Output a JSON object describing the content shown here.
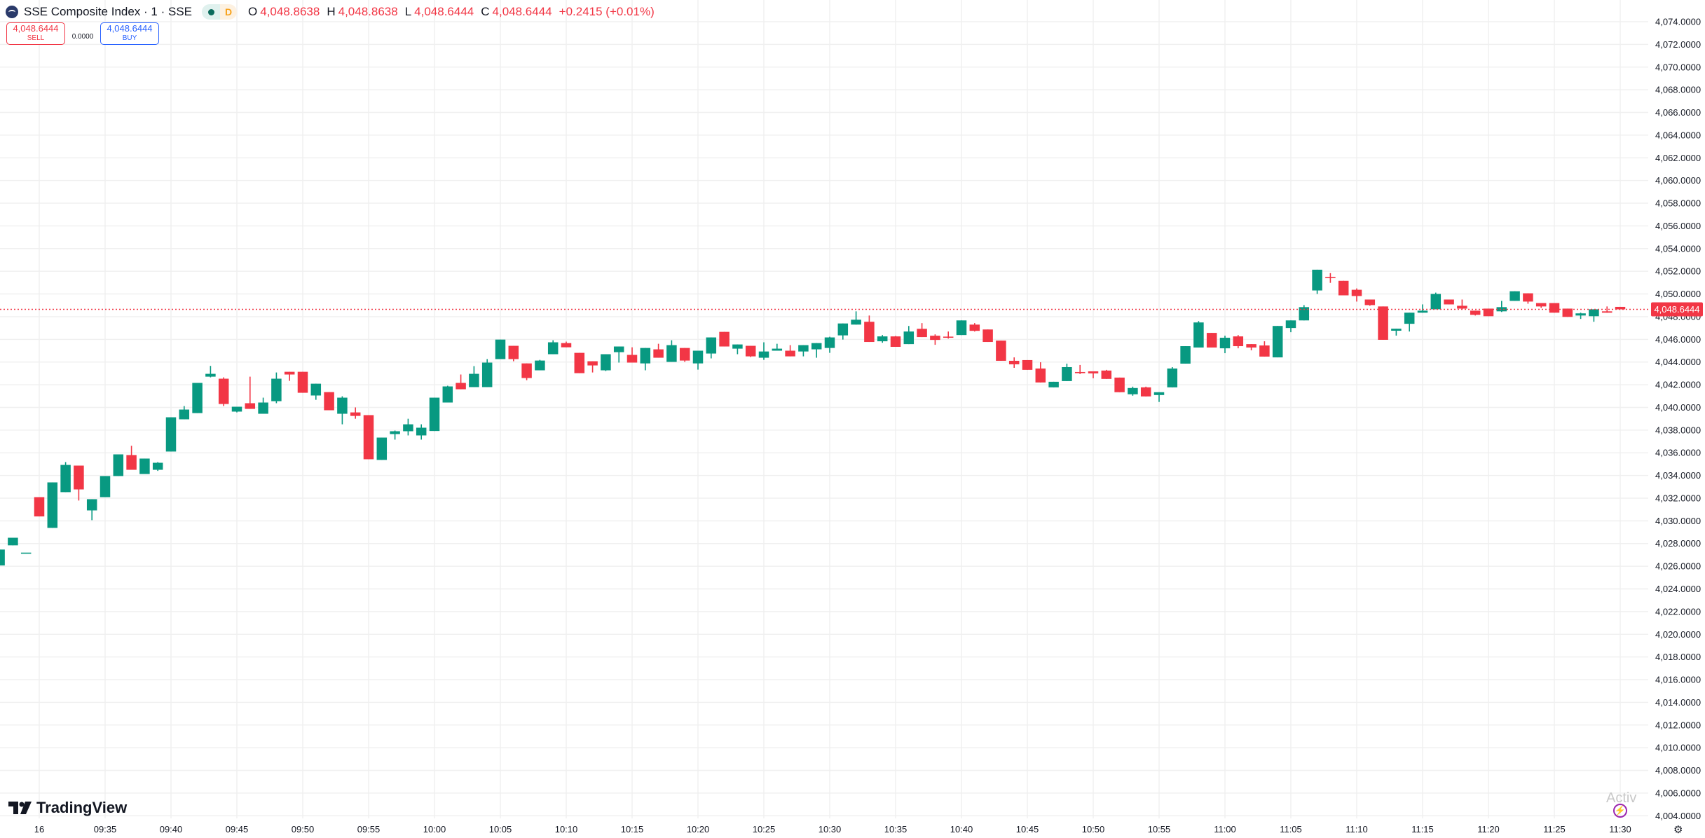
{
  "header": {
    "title": "SSE Composite Index · 1 · SSE",
    "status_label": "D",
    "o_label": "O",
    "o_value": "4,048.8638",
    "h_label": "H",
    "h_value": "4,048.8638",
    "l_label": "L",
    "l_value": "4,048.6444",
    "c_label": "C",
    "c_value": "4,048.6444",
    "change": "+0.2415 (+0.01%)"
  },
  "trade": {
    "sell_price": "4,048.6444",
    "sell_label": "SELL",
    "spread": "0.0000",
    "buy_price": "4,048.6444",
    "buy_label": "BUY"
  },
  "branding": {
    "name": "TradingView",
    "watermark": "Activ"
  },
  "icons": {
    "symbol": "sse-logo-icon",
    "market_status": "market-open-dot-icon",
    "bolt": "lightning-icon",
    "settings": "gear-icon"
  },
  "colors": {
    "up": "#089981",
    "down": "#F23645",
    "grid": "#F0F0F0",
    "buy": "#2962FF",
    "last_price": "#F23645"
  },
  "chart_data": {
    "type": "candlestick",
    "interval": "1 minute",
    "x_tick_labels": [
      "16",
      "09:35",
      "09:40",
      "09:45",
      "09:50",
      "09:55",
      "10:00",
      "10:05",
      "10:10",
      "10:15",
      "10:20",
      "10:25",
      "10:30",
      "10:35",
      "10:40",
      "10:45",
      "10:50",
      "10:55",
      "11:00",
      "11:05",
      "11:10",
      "11:15",
      "11:20",
      "11:25",
      "11:30"
    ],
    "y_range": [
      4004,
      4074
    ],
    "y_tick_step": 2,
    "y_tick_format_decimals": 4,
    "grid": true,
    "last_price": 4048.6444,
    "last_price_label": "4,048.6444",
    "columns": [
      "time",
      "open",
      "high",
      "low",
      "close"
    ],
    "candles": [
      [
        "09:27",
        4026.07,
        4027.47,
        4026.07,
        4027.47
      ],
      [
        "09:28",
        4027.84,
        4028.51,
        4027.84,
        4028.51
      ],
      [
        "09:29",
        4027.2,
        4027.2,
        4027.2,
        4027.2
      ],
      [
        "09:30",
        4032.09,
        4032.09,
        4030.39,
        4030.39
      ],
      [
        "09:31",
        4029.38,
        4033.39,
        4029.38,
        4033.39
      ],
      [
        "09:32",
        4032.53,
        4035.18,
        4032.53,
        4034.93
      ],
      [
        "09:33",
        4034.87,
        4034.87,
        4031.79,
        4032.77
      ],
      [
        "09:34",
        4030.92,
        4031.91,
        4030.06,
        4031.91
      ],
      [
        "09:35",
        4032.09,
        4033.95,
        4032.09,
        4033.95
      ],
      [
        "09:36",
        4033.95,
        4035.86,
        4033.95,
        4035.86
      ],
      [
        "09:37",
        4035.8,
        4036.62,
        4034.5,
        4034.5
      ],
      [
        "09:38",
        4034.13,
        4035.49,
        4034.13,
        4035.49
      ],
      [
        "09:39",
        4034.5,
        4035.18,
        4034.4,
        4035.12
      ],
      [
        "09:40",
        4036.11,
        4039.13,
        4036.11,
        4039.13
      ],
      [
        "09:41",
        4038.95,
        4040.12,
        4038.95,
        4039.81
      ],
      [
        "09:42",
        4039.5,
        4042.16,
        4039.5,
        4042.16
      ],
      [
        "09:43",
        4042.71,
        4043.66,
        4042.65,
        4042.96
      ],
      [
        "09:44",
        4042.53,
        4042.65,
        4040.12,
        4040.3
      ],
      [
        "09:45",
        4039.63,
        4040.06,
        4039.56,
        4040.06
      ],
      [
        "09:46",
        4040.37,
        4042.71,
        4039.87,
        4039.87
      ],
      [
        "09:47",
        4039.44,
        4040.86,
        4039.44,
        4040.43
      ],
      [
        "09:48",
        4040.55,
        4043.08,
        4040.37,
        4042.53
      ],
      [
        "09:49",
        4043.14,
        4043.14,
        4042.34,
        4042.9
      ],
      [
        "09:50",
        4043.14,
        4043.14,
        4041.29,
        4041.29
      ],
      [
        "09:51",
        4041.05,
        4042.09,
        4040.67,
        4042.09
      ],
      [
        "09:52",
        4041.35,
        4041.35,
        4039.75,
        4039.75
      ],
      [
        "09:53",
        4039.44,
        4040.98,
        4038.51,
        4040.86
      ],
      [
        "09:54",
        4039.56,
        4040.0,
        4039.0,
        4039.25
      ],
      [
        "09:55",
        4039.32,
        4039.32,
        4035.43,
        4035.43
      ],
      [
        "09:56",
        4035.37,
        4037.34,
        4035.37,
        4037.34
      ],
      [
        "09:57",
        4037.65,
        4037.96,
        4037.16,
        4037.9
      ],
      [
        "09:58",
        4037.9,
        4039.0,
        4037.53,
        4038.51
      ],
      [
        "09:59",
        4037.53,
        4038.51,
        4037.16,
        4038.21
      ],
      [
        "10:00",
        4037.92,
        4040.86,
        4037.92,
        4040.86
      ],
      [
        "10:01",
        4040.43,
        4041.91,
        4040.43,
        4041.85
      ],
      [
        "10:02",
        4042.16,
        4042.9,
        4041.6,
        4041.6
      ],
      [
        "10:03",
        4041.79,
        4043.64,
        4041.79,
        4042.96
      ],
      [
        "10:04",
        4041.79,
        4044.26,
        4041.79,
        4043.95
      ],
      [
        "10:05",
        4044.26,
        4045.98,
        4044.26,
        4045.98
      ],
      [
        "10:06",
        4045.43,
        4045.43,
        4044.07,
        4044.26
      ],
      [
        "10:07",
        4043.88,
        4043.88,
        4042.4,
        4042.59
      ],
      [
        "10:08",
        4043.27,
        4044.19,
        4043.27,
        4044.13
      ],
      [
        "10:09",
        4044.69,
        4045.92,
        4044.69,
        4045.74
      ],
      [
        "10:10",
        4045.67,
        4045.8,
        4045.3,
        4045.3
      ],
      [
        "10:11",
        4044.81,
        4044.81,
        4043.02,
        4043.02
      ],
      [
        "10:12",
        4044.07,
        4044.07,
        4043.08,
        4043.7
      ],
      [
        "10:13",
        4043.27,
        4044.69,
        4043.21,
        4044.69
      ],
      [
        "10:14",
        4044.87,
        4045.37,
        4043.95,
        4045.37
      ],
      [
        "10:15",
        4044.63,
        4045.3,
        4043.95,
        4043.95
      ],
      [
        "10:16",
        4043.88,
        4045.24,
        4043.27,
        4045.24
      ],
      [
        "10:17",
        4045.12,
        4045.61,
        4044.38,
        4044.38
      ],
      [
        "10:18",
        4044.01,
        4045.92,
        4044.01,
        4045.49
      ],
      [
        "10:19",
        4045.24,
        4045.24,
        4044.01,
        4044.13
      ],
      [
        "10:20",
        4043.88,
        4045.0,
        4043.33,
        4045.0
      ],
      [
        "10:21",
        4044.75,
        4046.17,
        4044.32,
        4046.17
      ],
      [
        "10:22",
        4046.66,
        4046.66,
        4045.37,
        4045.37
      ],
      [
        "10:23",
        4045.18,
        4045.55,
        4044.69,
        4045.55
      ],
      [
        "10:24",
        4045.43,
        4045.43,
        4044.44,
        4044.5
      ],
      [
        "10:25",
        4044.38,
        4045.74,
        4044.19,
        4044.93
      ],
      [
        "10:26",
        4045.0,
        4045.61,
        4045.0,
        4045.18
      ],
      [
        "10:27",
        4045.0,
        4045.49,
        4044.5,
        4044.5
      ],
      [
        "10:28",
        4044.93,
        4045.49,
        4044.5,
        4045.49
      ],
      [
        "10:29",
        4045.12,
        4045.67,
        4044.38,
        4045.67
      ],
      [
        "10:30",
        4045.24,
        4046.23,
        4044.81,
        4046.17
      ],
      [
        "10:31",
        4046.35,
        4047.4,
        4045.98,
        4047.4
      ],
      [
        "10:32",
        4047.3,
        4048.47,
        4047.3,
        4047.73
      ],
      [
        "10:33",
        4047.55,
        4048.1,
        4045.77,
        4045.77
      ],
      [
        "10:34",
        4045.83,
        4046.38,
        4045.7,
        4046.26
      ],
      [
        "10:35",
        4046.26,
        4046.3,
        4045.34,
        4045.34
      ],
      [
        "10:36",
        4045.58,
        4047.18,
        4045.58,
        4046.69
      ],
      [
        "10:37",
        4046.93,
        4047.43,
        4046.2,
        4046.2
      ],
      [
        "10:38",
        4046.32,
        4046.44,
        4045.52,
        4045.95
      ],
      [
        "10:39",
        4046.24,
        4046.69,
        4046.07,
        4046.2
      ],
      [
        "10:40",
        4046.38,
        4047.67,
        4046.38,
        4047.67
      ],
      [
        "10:41",
        4047.3,
        4047.43,
        4046.69,
        4046.75
      ],
      [
        "10:42",
        4046.87,
        4046.87,
        4045.77,
        4045.77
      ],
      [
        "10:43",
        4045.89,
        4045.89,
        4044.11,
        4044.11
      ],
      [
        "10:44",
        4044.11,
        4044.41,
        4043.49,
        4043.8
      ],
      [
        "10:45",
        4044.17,
        4044.17,
        4043.31,
        4043.31
      ],
      [
        "10:46",
        4043.43,
        4043.98,
        4042.2,
        4042.2
      ],
      [
        "10:47",
        4041.77,
        4042.26,
        4041.77,
        4042.26
      ],
      [
        "10:48",
        4042.32,
        4043.86,
        4042.32,
        4043.55
      ],
      [
        "10:49",
        4043.12,
        4043.74,
        4042.94,
        4043.08
      ],
      [
        "10:50",
        4043.18,
        4043.18,
        4042.57,
        4043.0
      ],
      [
        "10:51",
        4043.25,
        4043.31,
        4042.51,
        4042.51
      ],
      [
        "10:52",
        4042.63,
        4042.63,
        4041.34,
        4041.34
      ],
      [
        "10:53",
        4041.16,
        4041.83,
        4041.03,
        4041.71
      ],
      [
        "10:54",
        4041.77,
        4041.83,
        4040.97,
        4040.97
      ],
      [
        "10:55",
        4041.09,
        4041.34,
        4040.48,
        4041.34
      ],
      [
        "10:56",
        4041.77,
        4043.55,
        4041.77,
        4043.43
      ],
      [
        "10:57",
        4043.86,
        4045.4,
        4043.86,
        4045.4
      ],
      [
        "10:58",
        4045.28,
        4047.61,
        4045.28,
        4047.49
      ],
      [
        "10:59",
        4046.57,
        4046.57,
        4045.28,
        4045.28
      ],
      [
        "11:00",
        4045.21,
        4046.32,
        4044.78,
        4046.14
      ],
      [
        "11:01",
        4046.26,
        4046.38,
        4045.21,
        4045.4
      ],
      [
        "11:02",
        4045.58,
        4045.58,
        4045.03,
        4045.28
      ],
      [
        "11:03",
        4045.46,
        4045.83,
        4044.48,
        4044.48
      ],
      [
        "11:04",
        4044.41,
        4047.18,
        4044.41,
        4047.18
      ],
      [
        "11:05",
        4047.0,
        4047.67,
        4046.63,
        4047.67
      ],
      [
        "11:06",
        4047.67,
        4049.02,
        4047.67,
        4048.84
      ],
      [
        "11:07",
        4050.31,
        4052.14,
        4050.0,
        4052.14
      ],
      [
        "11:08",
        4051.49,
        4051.84,
        4050.98,
        4051.45
      ],
      [
        "11:09",
        4051.16,
        4051.16,
        4049.88,
        4049.88
      ],
      [
        "11:10",
        4050.37,
        4050.49,
        4049.33,
        4049.82
      ],
      [
        "11:11",
        4049.51,
        4049.51,
        4048.96,
        4049.02
      ],
      [
        "11:12",
        4048.9,
        4048.9,
        4045.96,
        4045.96
      ],
      [
        "11:13",
        4046.76,
        4046.94,
        4046.33,
        4046.94
      ],
      [
        "11:14",
        4047.37,
        4048.35,
        4046.69,
        4048.35
      ],
      [
        "11:15",
        4048.35,
        4049.08,
        4048.35,
        4048.53
      ],
      [
        "11:16",
        4048.65,
        4050.12,
        4048.65,
        4050.0
      ],
      [
        "11:17",
        4049.51,
        4049.51,
        4049.08,
        4049.08
      ],
      [
        "11:18",
        4048.96,
        4049.51,
        4048.65,
        4048.71
      ],
      [
        "11:19",
        4048.53,
        4048.53,
        4048.1,
        4048.16
      ],
      [
        "11:20",
        4048.71,
        4048.71,
        4048.04,
        4048.04
      ],
      [
        "11:21",
        4048.47,
        4049.39,
        4048.41,
        4048.84
      ],
      [
        "11:22",
        4049.39,
        4050.24,
        4049.39,
        4050.24
      ],
      [
        "11:23",
        4050.06,
        4050.06,
        4049.14,
        4049.33
      ],
      [
        "11:24",
        4049.2,
        4049.2,
        4048.78,
        4048.9
      ],
      [
        "11:25",
        4049.2,
        4049.2,
        4048.35,
        4048.35
      ],
      [
        "11:26",
        4048.71,
        4048.71,
        4047.98,
        4047.98
      ],
      [
        "11:27",
        4048.1,
        4048.35,
        4047.8,
        4048.29
      ],
      [
        "11:28",
        4048.04,
        4048.65,
        4047.55,
        4048.65
      ],
      [
        "11:29",
        4048.47,
        4048.9,
        4048.35,
        4048.35
      ],
      [
        "11:30",
        4048.8638,
        4048.8638,
        4048.6444,
        4048.6444
      ]
    ]
  }
}
